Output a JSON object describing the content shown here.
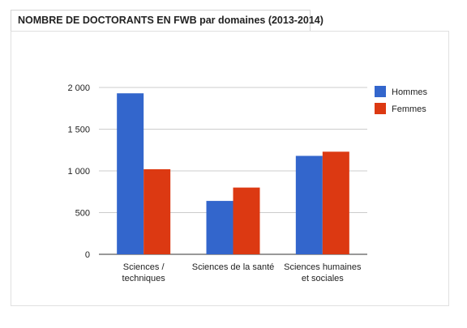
{
  "title": "NOMBRE DE DOCTORANTS EN FWB par domaines (2013-2014)",
  "chart_data": {
    "type": "bar",
    "title": "NOMBRE DE DOCTORANTS EN FWB par domaines (2013-2014)",
    "categories": [
      [
        "Sciences /",
        "techniques"
      ],
      [
        "Sciences de la santé"
      ],
      [
        "Sciences humaines",
        "et sociales"
      ]
    ],
    "series": [
      {
        "name": "Hommes",
        "color": "#3366cc",
        "values": [
          1930,
          640,
          1180
        ]
      },
      {
        "name": "Femmes",
        "color": "#dc3912",
        "values": [
          1020,
          800,
          1230
        ]
      }
    ],
    "ylim": [
      0,
      2000
    ],
    "yticks": [
      0,
      500,
      1000,
      1500,
      2000
    ],
    "ytick_labels": [
      "0",
      "500",
      "1 000",
      "1 500",
      "2 000"
    ],
    "xlabel": "",
    "ylabel": "",
    "grid": true,
    "legend_position": "right"
  }
}
